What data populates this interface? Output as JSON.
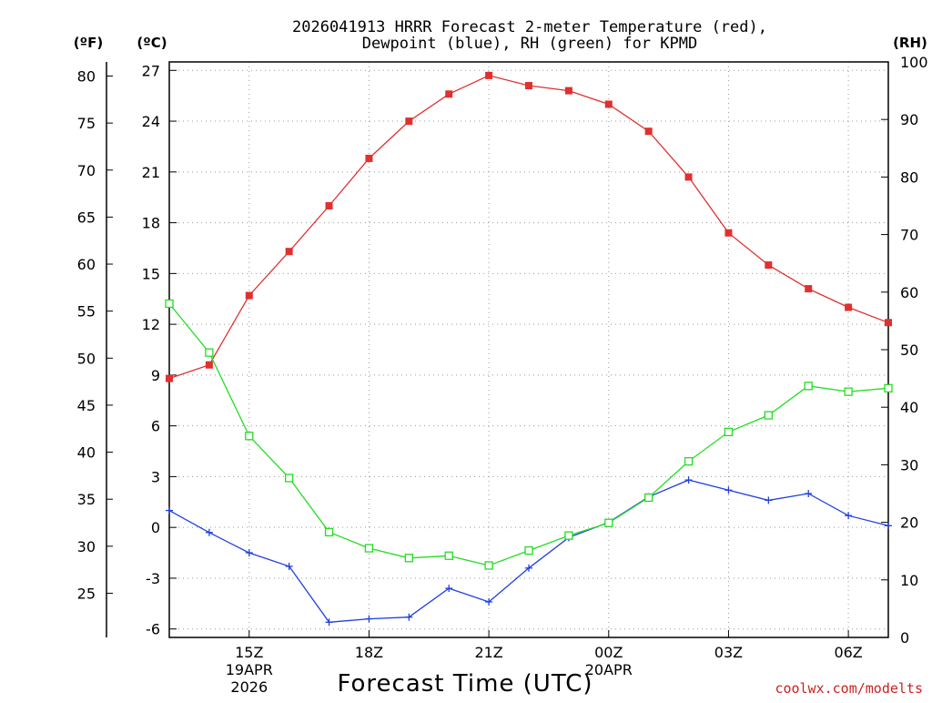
{
  "colors": {
    "temperature": "#e03030",
    "dewpoint": "#2040e0",
    "rh": "#22dd22",
    "grid": "#999999",
    "credit": "#cc2222"
  },
  "chart_data": {
    "type": "line",
    "title": [
      "2026041913 HRRR Forecast 2-meter Temperature (red),",
      "Dewpoint (blue), RH (green) for KPMD"
    ],
    "xlabel": "Forecast Time (UTC)",
    "credit": "coolwx.com/modelts",
    "unit_labels": {
      "fahrenheit": "(ºF)",
      "celsius": "(ºC)",
      "rh": "(RH)"
    },
    "x_hours": [
      13,
      14,
      15,
      16,
      17,
      18,
      19,
      20,
      21,
      22,
      23,
      24,
      25,
      26,
      27,
      28,
      29,
      30,
      31
    ],
    "xlim": [
      13,
      31
    ],
    "x_ticks": [
      {
        "hour": 15,
        "label": "15Z",
        "sub": [
          "19APR",
          "2026"
        ]
      },
      {
        "hour": 18,
        "label": "18Z",
        "sub": []
      },
      {
        "hour": 21,
        "label": "21Z",
        "sub": []
      },
      {
        "hour": 24,
        "label": "00Z",
        "sub": [
          "20APR"
        ]
      },
      {
        "hour": 27,
        "label": "03Z",
        "sub": []
      },
      {
        "hour": 30,
        "label": "06Z",
        "sub": []
      }
    ],
    "celsius_axis": {
      "min": -6.5,
      "max": 27.5,
      "ticks": [
        "27",
        "24",
        "21",
        "18",
        "15",
        "12",
        "9",
        "6",
        "3",
        "0",
        "-3",
        "-6"
      ]
    },
    "fahrenheit_ticks": [
      "80",
      "75",
      "70",
      "65",
      "60",
      "55",
      "50",
      "45",
      "40",
      "35",
      "30",
      "25"
    ],
    "rh_axis": {
      "min": 0,
      "max": 100,
      "ticks": [
        "100",
        "90",
        "80",
        "70",
        "60",
        "50",
        "40",
        "30",
        "20",
        "10",
        "0"
      ]
    },
    "series": [
      {
        "name": "Temperature",
        "unit": "C",
        "marker": "filled-square",
        "values": [
          8.8,
          9.6,
          13.7,
          16.3,
          19.0,
          21.8,
          24.0,
          25.6,
          26.7,
          26.1,
          25.8,
          25.0,
          23.4,
          20.7,
          17.4,
          15.5,
          14.1,
          13.0,
          12.1
        ]
      },
      {
        "name": "Dewpoint",
        "unit": "C",
        "marker": "plus",
        "values": [
          1.0,
          -0.3,
          -1.5,
          -2.3,
          -5.6,
          -5.4,
          -5.3,
          -3.6,
          -4.4,
          -2.4,
          -0.6,
          0.3,
          1.8,
          2.8,
          2.2,
          1.6,
          2.0,
          0.7,
          0.1
        ]
      },
      {
        "name": "RH",
        "unit": "%",
        "marker": "open-square",
        "values": [
          58.0,
          49.5,
          35.0,
          27.7,
          18.3,
          15.5,
          13.8,
          14.2,
          12.5,
          15.1,
          17.7,
          19.9,
          24.3,
          30.6,
          35.7,
          38.6,
          43.7,
          42.7,
          43.3
        ]
      }
    ]
  }
}
